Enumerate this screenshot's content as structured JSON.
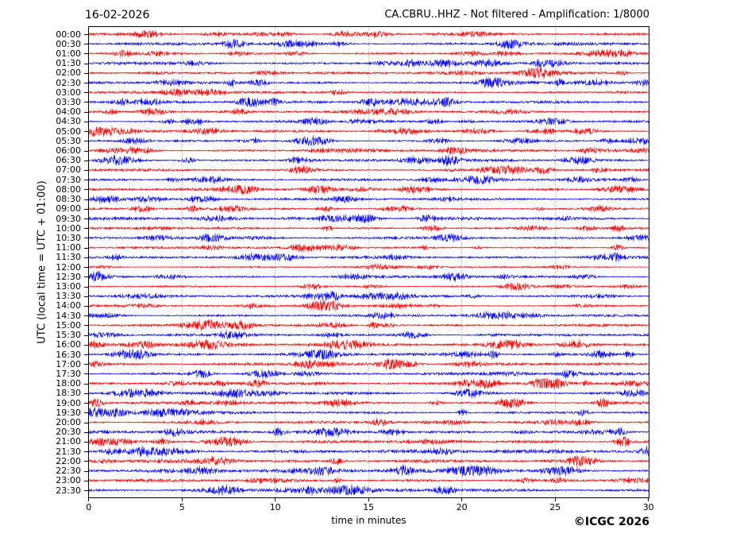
{
  "chart_data": {
    "type": "line",
    "subtype": "helicorder-seismogram",
    "date": "16-02-2026",
    "title": "CA.CBRU..HHZ - Not filtered - Amplification: 1/8000",
    "xlabel": "time in minutes",
    "ylabel": "UTC (local time = UTC + 01:00)",
    "credit": "©ICGC 2026",
    "xlim": [
      0,
      30
    ],
    "x_ticks": [
      0,
      5,
      10,
      15,
      20,
      25,
      30
    ],
    "grid": {
      "vertical_dotted_at_minutes": [
        5,
        10,
        15,
        20,
        25
      ],
      "horizontal": false
    },
    "legend": "none",
    "colors": {
      "even_trace": "#ff0000",
      "odd_trace": "#0000ff",
      "grid": "#444444",
      "frame": "#000000",
      "text": "#000000"
    },
    "minutes_per_line": 30,
    "traces": [
      {
        "label": "00:00",
        "color": "#ff0000",
        "amplitude": 2.4,
        "seed": 101
      },
      {
        "label": "00:30",
        "color": "#0000ff",
        "amplitude": 2.4,
        "seed": 102
      },
      {
        "label": "01:00",
        "color": "#ff0000",
        "amplitude": 2.1,
        "seed": 103
      },
      {
        "label": "01:30",
        "color": "#0000ff",
        "amplitude": 2.3,
        "seed": 104
      },
      {
        "label": "02:00",
        "color": "#ff0000",
        "amplitude": 2.1,
        "seed": 105
      },
      {
        "label": "02:30",
        "color": "#0000ff",
        "amplitude": 2.2,
        "seed": 106
      },
      {
        "label": "03:00",
        "color": "#ff0000",
        "amplitude": 2.0,
        "seed": 107
      },
      {
        "label": "03:30",
        "color": "#0000ff",
        "amplitude": 2.2,
        "seed": 108
      },
      {
        "label": "04:00",
        "color": "#ff0000",
        "amplitude": 2.0,
        "seed": 109
      },
      {
        "label": "04:30",
        "color": "#0000ff",
        "amplitude": 2.0,
        "seed": 110
      },
      {
        "label": "05:00",
        "color": "#ff0000",
        "amplitude": 2.0,
        "seed": 111
      },
      {
        "label": "05:30",
        "color": "#0000ff",
        "amplitude": 2.1,
        "seed": 112
      },
      {
        "label": "06:00",
        "color": "#ff0000",
        "amplitude": 2.2,
        "seed": 113
      },
      {
        "label": "06:30",
        "color": "#0000ff",
        "amplitude": 2.2,
        "seed": 114
      },
      {
        "label": "07:00",
        "color": "#ff0000",
        "amplitude": 2.1,
        "seed": 115
      },
      {
        "label": "07:30",
        "color": "#0000ff",
        "amplitude": 2.3,
        "seed": 116
      },
      {
        "label": "08:00",
        "color": "#ff0000",
        "amplitude": 2.2,
        "seed": 117
      },
      {
        "label": "08:30",
        "color": "#0000ff",
        "amplitude": 2.1,
        "seed": 118
      },
      {
        "label": "09:00",
        "color": "#ff0000",
        "amplitude": 1.9,
        "seed": 119
      },
      {
        "label": "09:30",
        "color": "#0000ff",
        "amplitude": 2.6,
        "seed": 120
      },
      {
        "label": "10:00",
        "color": "#ff0000",
        "amplitude": 1.9,
        "seed": 121
      },
      {
        "label": "10:30",
        "color": "#0000ff",
        "amplitude": 2.0,
        "seed": 122
      },
      {
        "label": "11:00",
        "color": "#ff0000",
        "amplitude": 1.9,
        "seed": 123
      },
      {
        "label": "11:30",
        "color": "#0000ff",
        "amplitude": 2.2,
        "seed": 124
      },
      {
        "label": "12:00",
        "color": "#ff0000",
        "amplitude": 1.6,
        "seed": 125
      },
      {
        "label": "12:30",
        "color": "#0000ff",
        "amplitude": 1.9,
        "seed": 126
      },
      {
        "label": "13:00",
        "color": "#ff0000",
        "amplitude": 1.6,
        "seed": 127
      },
      {
        "label": "13:30",
        "color": "#0000ff",
        "amplitude": 1.9,
        "seed": 128
      },
      {
        "label": "14:00",
        "color": "#ff0000",
        "amplitude": 1.9,
        "seed": 129
      },
      {
        "label": "14:30",
        "color": "#0000ff",
        "amplitude": 2.0,
        "seed": 130
      },
      {
        "label": "15:00",
        "color": "#ff0000",
        "amplitude": 2.0,
        "seed": 131
      },
      {
        "label": "15:30",
        "color": "#0000ff",
        "amplitude": 2.2,
        "seed": 132
      },
      {
        "label": "16:00",
        "color": "#ff0000",
        "amplitude": 2.5,
        "seed": 133
      },
      {
        "label": "16:30",
        "color": "#0000ff",
        "amplitude": 2.5,
        "seed": 134
      },
      {
        "label": "17:00",
        "color": "#ff0000",
        "amplitude": 2.5,
        "seed": 135
      },
      {
        "label": "17:30",
        "color": "#0000ff",
        "amplitude": 2.5,
        "seed": 136
      },
      {
        "label": "18:00",
        "color": "#ff0000",
        "amplitude": 2.5,
        "seed": 137
      },
      {
        "label": "18:30",
        "color": "#0000ff",
        "amplitude": 2.5,
        "seed": 138
      },
      {
        "label": "19:00",
        "color": "#ff0000",
        "amplitude": 2.5,
        "seed": 139
      },
      {
        "label": "19:30",
        "color": "#0000ff",
        "amplitude": 2.5,
        "seed": 140
      },
      {
        "label": "20:00",
        "color": "#ff0000",
        "amplitude": 2.3,
        "seed": 141
      },
      {
        "label": "20:30",
        "color": "#0000ff",
        "amplitude": 2.8,
        "seed": 142
      },
      {
        "label": "21:00",
        "color": "#ff0000",
        "amplitude": 2.8,
        "seed": 143
      },
      {
        "label": "21:30",
        "color": "#0000ff",
        "amplitude": 3.0,
        "seed": 144
      },
      {
        "label": "22:00",
        "color": "#ff0000",
        "amplitude": 2.8,
        "seed": 145
      },
      {
        "label": "22:30",
        "color": "#0000ff",
        "amplitude": 3.1,
        "seed": 146
      },
      {
        "label": "23:00",
        "color": "#ff0000",
        "amplitude": 2.8,
        "seed": 147
      },
      {
        "label": "23:30",
        "color": "#0000ff",
        "amplitude": 2.9,
        "seed": 148
      }
    ]
  }
}
